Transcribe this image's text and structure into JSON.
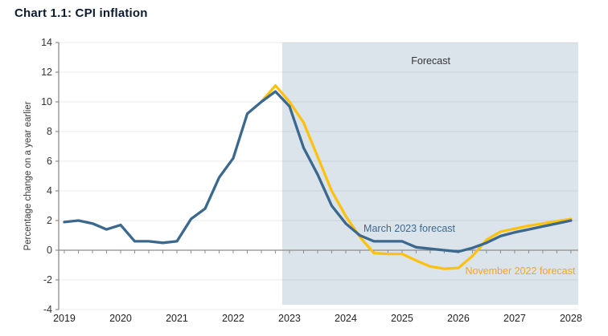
{
  "title": "Chart 1.1: CPI inflation",
  "colors": {
    "background": "#ffffff",
    "title_text": "#0c1c2e",
    "axis": "#8c8c8c",
    "tick_text": "#333333",
    "gridline": "#000000",
    "forecast_fill": "#dbe3eb",
    "march_line": "#3b688d",
    "march_label": "#3e6a8e",
    "november_line": "#fdc20f",
    "november_label": "#f0a81e",
    "annotation_text": "#333333"
  },
  "chart_data": {
    "type": "line",
    "title": "Chart 1.1: CPI inflation",
    "xlabel": "",
    "ylabel": "Percentage change on a year earlier",
    "ylim": [
      -4,
      14
    ],
    "yticks": [
      -4,
      -2,
      0,
      2,
      4,
      6,
      8,
      10,
      12,
      14
    ],
    "xlim": [
      2018.9,
      2028.13
    ],
    "xticks": [
      2019,
      2020,
      2021,
      2022,
      2023,
      2024,
      2025,
      2026,
      2027,
      2028
    ],
    "xtick_minor_step_years": 0.25,
    "grid": "horizontal light gridlines at each y tick; zero line is the x axis",
    "legend_position": "inline labels on lines",
    "forecast_region": {
      "label": "Forecast",
      "start": 2022.87,
      "end": 2028.13
    },
    "annotations": [
      {
        "text": "Forecast",
        "x": 2025.51,
        "y": 12.75,
        "color_key": "annotation_text"
      }
    ],
    "series": [
      {
        "name": "November 2022 forecast",
        "color_key": "november_line",
        "label_color_key": "november_label",
        "label_pos": {
          "x": 2027.1,
          "y": -1.4
        },
        "x": [
          2022.5,
          2022.75,
          2023.0,
          2023.25,
          2023.5,
          2023.75,
          2024.0,
          2024.25,
          2024.5,
          2024.75,
          2025.0,
          2025.25,
          2025.5,
          2025.75,
          2026.0,
          2026.25,
          2026.5,
          2026.75,
          2027.0,
          2027.25,
          2027.5,
          2027.75,
          2028.0
        ],
        "values": [
          10.0,
          11.1,
          10.0,
          8.6,
          6.3,
          4.0,
          2.3,
          0.9,
          -0.2,
          -0.25,
          -0.25,
          -0.7,
          -1.1,
          -1.25,
          -1.2,
          -0.4,
          0.7,
          1.25,
          1.45,
          1.65,
          1.8,
          1.95,
          2.1
        ]
      },
      {
        "name": "March 2023 forecast",
        "color_key": "march_line",
        "label_color_key": "march_label",
        "label_pos": {
          "x": 2025.13,
          "y": 1.46
        },
        "x": [
          2019.0,
          2019.25,
          2019.5,
          2019.75,
          2020.0,
          2020.25,
          2020.5,
          2020.75,
          2021.0,
          2021.25,
          2021.5,
          2021.75,
          2022.0,
          2022.25,
          2022.5,
          2022.75,
          2023.0,
          2023.25,
          2023.5,
          2023.75,
          2024.0,
          2024.25,
          2024.5,
          2024.75,
          2025.0,
          2025.25,
          2025.5,
          2025.75,
          2026.0,
          2026.25,
          2026.5,
          2026.75,
          2027.0,
          2027.25,
          2027.5,
          2027.75,
          2028.0
        ],
        "values": [
          1.9,
          2.0,
          1.8,
          1.4,
          1.7,
          0.6,
          0.6,
          0.5,
          0.6,
          2.1,
          2.8,
          4.9,
          6.2,
          9.2,
          10.0,
          10.7,
          9.7,
          6.9,
          5.1,
          3.0,
          1.8,
          1.0,
          0.6,
          0.6,
          0.6,
          0.2,
          0.1,
          0.0,
          -0.1,
          0.15,
          0.5,
          0.95,
          1.2,
          1.4,
          1.6,
          1.8,
          2.0
        ]
      }
    ]
  }
}
